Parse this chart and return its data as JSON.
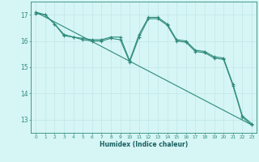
{
  "xlabel": "Humidex (Indice chaleur)",
  "bg_color": "#d6f5f5",
  "line_color": "#2e8b7a",
  "grid_color": "#c0e8e8",
  "xlim": [
    -0.5,
    23.5
  ],
  "ylim": [
    12.5,
    17.5
  ],
  "yticks": [
    13,
    14,
    15,
    16,
    17
  ],
  "xticks": [
    0,
    1,
    2,
    3,
    4,
    5,
    6,
    7,
    8,
    9,
    10,
    11,
    12,
    13,
    14,
    15,
    16,
    17,
    18,
    19,
    20,
    21,
    22,
    23
  ],
  "line1_x": [
    0,
    1,
    2,
    3,
    4,
    5,
    6,
    7,
    8,
    9,
    10,
    11,
    12,
    13,
    14,
    15,
    16,
    17,
    18,
    19,
    20,
    21,
    22,
    23
  ],
  "line1_y": [
    17.05,
    17.0,
    16.65,
    16.2,
    16.15,
    16.05,
    16.0,
    16.0,
    16.1,
    16.05,
    15.2,
    16.15,
    16.85,
    16.85,
    16.6,
    16.0,
    15.95,
    15.6,
    15.55,
    15.35,
    15.3,
    14.3,
    13.1,
    12.8
  ],
  "line2_x": [
    0,
    1,
    2,
    3,
    4,
    5,
    6,
    7,
    8,
    9,
    10,
    11,
    12,
    13,
    14,
    15,
    16,
    17,
    18,
    19,
    20,
    21,
    22,
    23
  ],
  "line2_y": [
    17.1,
    17.0,
    16.65,
    16.25,
    16.15,
    16.1,
    16.05,
    16.05,
    16.15,
    16.15,
    15.25,
    16.25,
    16.9,
    16.9,
    16.65,
    16.05,
    16.0,
    15.65,
    15.6,
    15.4,
    15.35,
    14.35,
    13.15,
    12.85
  ],
  "line3_x": [
    0,
    23
  ],
  "line3_y": [
    17.1,
    12.8
  ]
}
